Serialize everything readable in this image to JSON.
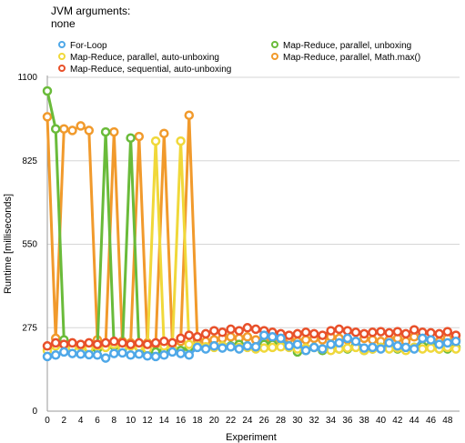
{
  "header": {
    "jvm_label": "JVM arguments:",
    "jvm_value": "none"
  },
  "chart_data": {
    "type": "line",
    "title": "",
    "xlabel": "Experiment",
    "ylabel": "Runtime [milliseconds]",
    "xlim": [
      0,
      49
    ],
    "ylim": [
      0,
      1100
    ],
    "xticks": [
      0,
      2,
      4,
      6,
      8,
      10,
      12,
      14,
      16,
      18,
      20,
      22,
      24,
      26,
      28,
      30,
      32,
      34,
      36,
      38,
      40,
      42,
      44,
      46,
      48
    ],
    "yticks": [
      0,
      275,
      550,
      825,
      1100
    ],
    "grid": "horizontal",
    "legend": "top",
    "x": [
      0,
      1,
      2,
      3,
      4,
      5,
      6,
      7,
      8,
      9,
      10,
      11,
      12,
      13,
      14,
      15,
      16,
      17,
      18,
      19,
      20,
      21,
      22,
      23,
      24,
      25,
      26,
      27,
      28,
      29,
      30,
      31,
      32,
      33,
      34,
      35,
      36,
      37,
      38,
      39,
      40,
      41,
      42,
      43,
      44,
      45,
      46,
      47,
      48,
      49
    ],
    "series": [
      {
        "name": "For-Loop",
        "color": "#4fa8e8",
        "values": [
          180,
          185,
          195,
          190,
          188,
          186,
          185,
          175,
          190,
          192,
          185,
          188,
          182,
          180,
          185,
          195,
          190,
          185,
          210,
          205,
          215,
          208,
          212,
          205,
          215,
          212,
          250,
          245,
          240,
          215,
          220,
          200,
          210,
          205,
          220,
          225,
          240,
          230,
          208,
          210,
          205,
          225,
          215,
          210,
          205,
          240,
          235,
          220,
          225,
          230
        ]
      },
      {
        "name": "Map-Reduce, parallel, unboxing",
        "color": "#6abb3a",
        "values": [
          1055,
          930,
          235,
          210,
          215,
          205,
          205,
          920,
          215,
          205,
          900,
          210,
          200,
          195,
          200,
          210,
          200,
          210,
          215,
          210,
          215,
          215,
          215,
          220,
          215,
          210,
          220,
          220,
          215,
          215,
          195,
          200,
          210,
          200,
          215,
          205,
          205,
          215,
          200,
          205,
          210,
          215,
          205,
          205,
          210,
          215,
          215,
          205,
          205,
          210
        ]
      },
      {
        "name": "Map-Reduce, parallel, auto-unboxing",
        "color": "#f0d83a",
        "values": [
          200,
          215,
          220,
          210,
          212,
          208,
          215,
          210,
          220,
          210,
          215,
          212,
          205,
          890,
          215,
          210,
          890,
          220,
          215,
          212,
          210,
          215,
          212,
          210,
          210,
          205,
          208,
          210,
          212,
          210,
          205,
          208,
          210,
          205,
          200,
          205,
          208,
          210,
          200,
          205,
          210,
          205,
          208,
          200,
          210,
          205,
          208,
          205,
          210,
          205
        ]
      },
      {
        "name": "Map-Reduce, parallel, Math.max()",
        "color": "#f19a2c",
        "values": [
          970,
          240,
          930,
          925,
          940,
          925,
          235,
          220,
          920,
          230,
          225,
          905,
          225,
          220,
          915,
          225,
          230,
          975,
          235,
          230,
          235,
          240,
          245,
          240,
          245,
          235,
          230,
          240,
          235,
          240,
          230,
          235,
          240,
          235,
          245,
          240,
          235,
          230,
          240,
          235,
          230,
          235,
          240,
          230,
          245,
          240,
          235,
          230,
          240,
          235
        ]
      },
      {
        "name": "Map-Reduce, sequential, auto-unboxing",
        "color": "#e8502a",
        "values": [
          215,
          225,
          220,
          225,
          220,
          225,
          220,
          225,
          230,
          225,
          220,
          225,
          220,
          225,
          230,
          225,
          240,
          250,
          245,
          255,
          265,
          260,
          270,
          265,
          275,
          270,
          265,
          260,
          255,
          250,
          255,
          260,
          255,
          250,
          265,
          270,
          265,
          260,
          255,
          260,
          262,
          258,
          262,
          255,
          268,
          260,
          258,
          255,
          262,
          250
        ]
      }
    ]
  }
}
